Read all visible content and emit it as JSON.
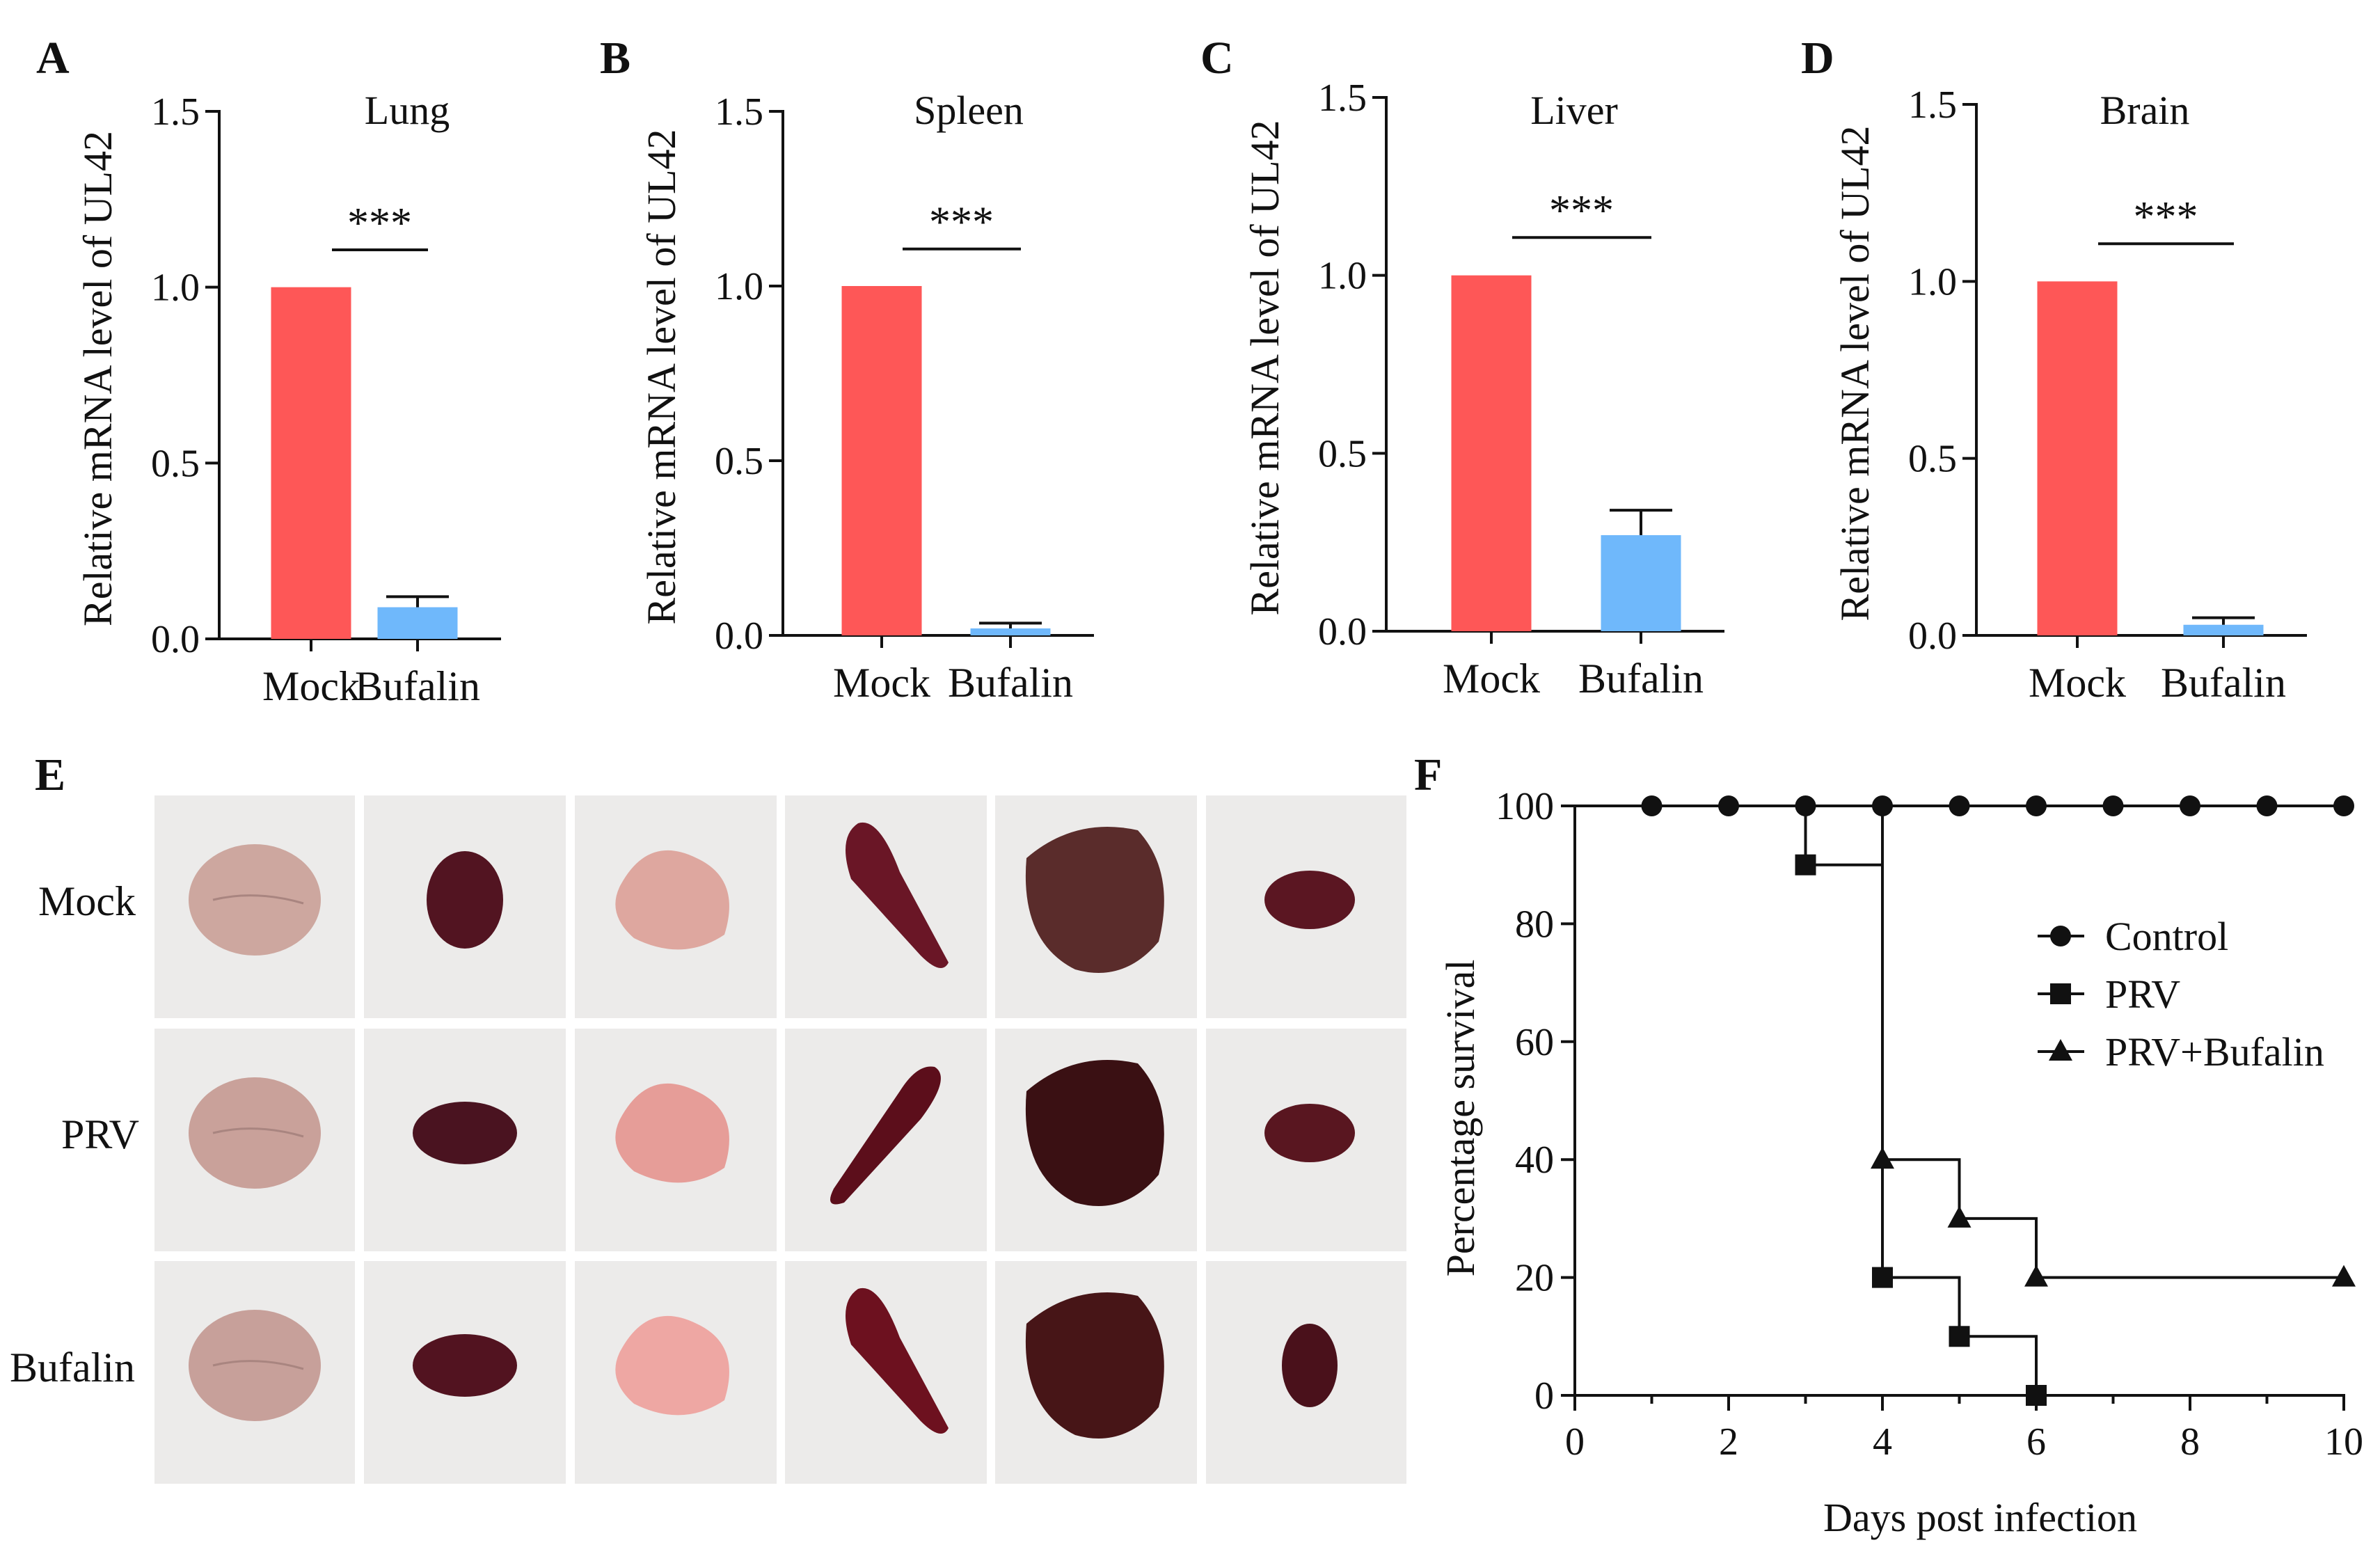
{
  "colors": {
    "mock_bar": "#fe5757",
    "bufalin_bar": "#6fb8fb",
    "axis": "#111111",
    "photo_bg": "#ecebea",
    "line": "#111111"
  },
  "panel_e": {
    "letter": "E",
    "row_labels": [
      "Mock",
      "PRV",
      "Bufalin"
    ],
    "organ_icons": [
      "brain-organ-icon",
      "kidney-organ-icon",
      "lung-organ-icon",
      "spleen-organ-icon",
      "liver-organ-icon",
      "heart-organ-icon"
    ]
  },
  "chart_data": [
    {
      "letter": "A",
      "type": "bar",
      "title": "Lung",
      "ylabel": "Relative  mRNA level of UL42",
      "categories": [
        "Mock",
        "Bufalin"
      ],
      "values": [
        1.0,
        0.09
      ],
      "errors": [
        0,
        0.03
      ],
      "ylim": [
        0,
        1.5
      ],
      "yticks": [
        "0.0",
        "0.5",
        "1.0",
        "1.5"
      ],
      "significance": "***"
    },
    {
      "letter": "B",
      "type": "bar",
      "title": "Spleen",
      "ylabel": "Relative  mRNA level of UL42",
      "categories": [
        "Mock",
        "Bufalin"
      ],
      "values": [
        1.0,
        0.02
      ],
      "errors": [
        0,
        0.015
      ],
      "ylim": [
        0,
        1.5
      ],
      "yticks": [
        "0.0",
        "0.5",
        "1.0",
        "1.5"
      ],
      "significance": "***"
    },
    {
      "letter": "C",
      "type": "bar",
      "title": "Liver",
      "ylabel": "Relative  mRNA level of UL42",
      "categories": [
        "Mock",
        "Bufalin"
      ],
      "values": [
        1.0,
        0.27
      ],
      "errors": [
        0,
        0.07
      ],
      "ylim": [
        0,
        1.5
      ],
      "yticks": [
        "0.0",
        "0.5",
        "1.0",
        "1.5"
      ],
      "significance": "***"
    },
    {
      "letter": "D",
      "type": "bar",
      "title": "Brain",
      "ylabel": "Relative  mRNA level of UL42",
      "categories": [
        "Mock",
        "Bufalin"
      ],
      "values": [
        1.0,
        0.03
      ],
      "errors": [
        0,
        0.02
      ],
      "ylim": [
        0,
        1.5
      ],
      "yticks": [
        "0.0",
        "0.5",
        "1.0",
        "1.5"
      ],
      "significance": "***"
    },
    {
      "letter": "F",
      "type": "line",
      "title": "",
      "xlabel": "Days post infection",
      "ylabel": "Percentage survival",
      "xlim": [
        0,
        10
      ],
      "ylim": [
        0,
        100
      ],
      "xticks": [
        "0",
        "2",
        "4",
        "6",
        "8",
        "10"
      ],
      "yticks": [
        "0",
        "20",
        "40",
        "60",
        "80",
        "100"
      ],
      "step": true,
      "series": [
        {
          "name": "Control",
          "marker": "circle",
          "x": [
            1,
            2,
            3,
            4,
            5,
            6,
            7,
            8,
            9,
            10
          ],
          "y": [
            100,
            100,
            100,
            100,
            100,
            100,
            100,
            100,
            100,
            100
          ]
        },
        {
          "name": "PRV",
          "marker": "square",
          "x": [
            3,
            4,
            5,
            6
          ],
          "y": [
            90,
            20,
            10,
            0
          ],
          "start": [
            0,
            100
          ],
          "end": [
            10,
            0
          ]
        },
        {
          "name": "PRV+Bufalin",
          "marker": "triangle",
          "x": [
            4,
            5,
            6,
            10
          ],
          "y": [
            40,
            30,
            20,
            20
          ],
          "start": [
            0,
            100
          ]
        }
      ]
    }
  ]
}
